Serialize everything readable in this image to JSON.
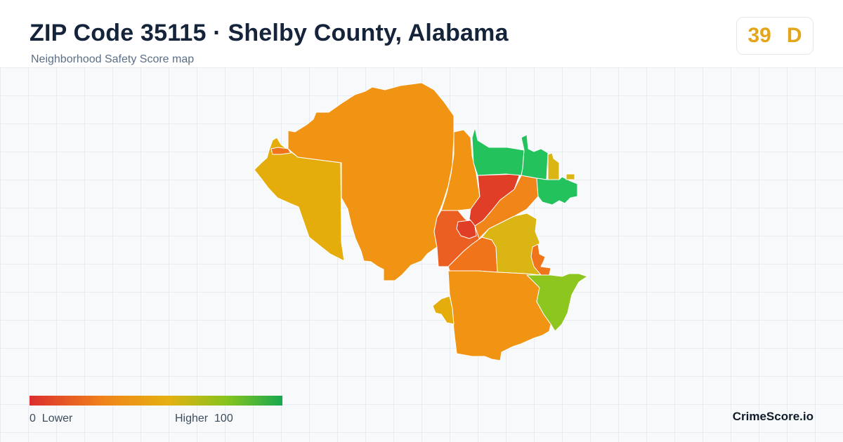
{
  "header": {
    "title": "ZIP Code 35115 · Shelby County, Alabama",
    "subtitle": "Neighborhood Safety Score map"
  },
  "score": {
    "value": "39",
    "grade": "D",
    "color": "#e3a51a"
  },
  "legend": {
    "min_value": "0",
    "min_label": "Lower",
    "max_label": "Higher",
    "max_value": "100",
    "gradient": [
      "#dc2e2e",
      "#f0851a",
      "#e4b012",
      "#86c41e",
      "#18a84f"
    ]
  },
  "brand": "CrimeScore.io",
  "palette": {
    "red": "#e03e26",
    "red_orange": "#ec5f22",
    "orange_dark": "#f0741a",
    "orange": "#f19414",
    "amber": "#e4ad0c",
    "yellow": "#dbb514",
    "yellow_green": "#8cc61e",
    "green": "#23c25c"
  }
}
